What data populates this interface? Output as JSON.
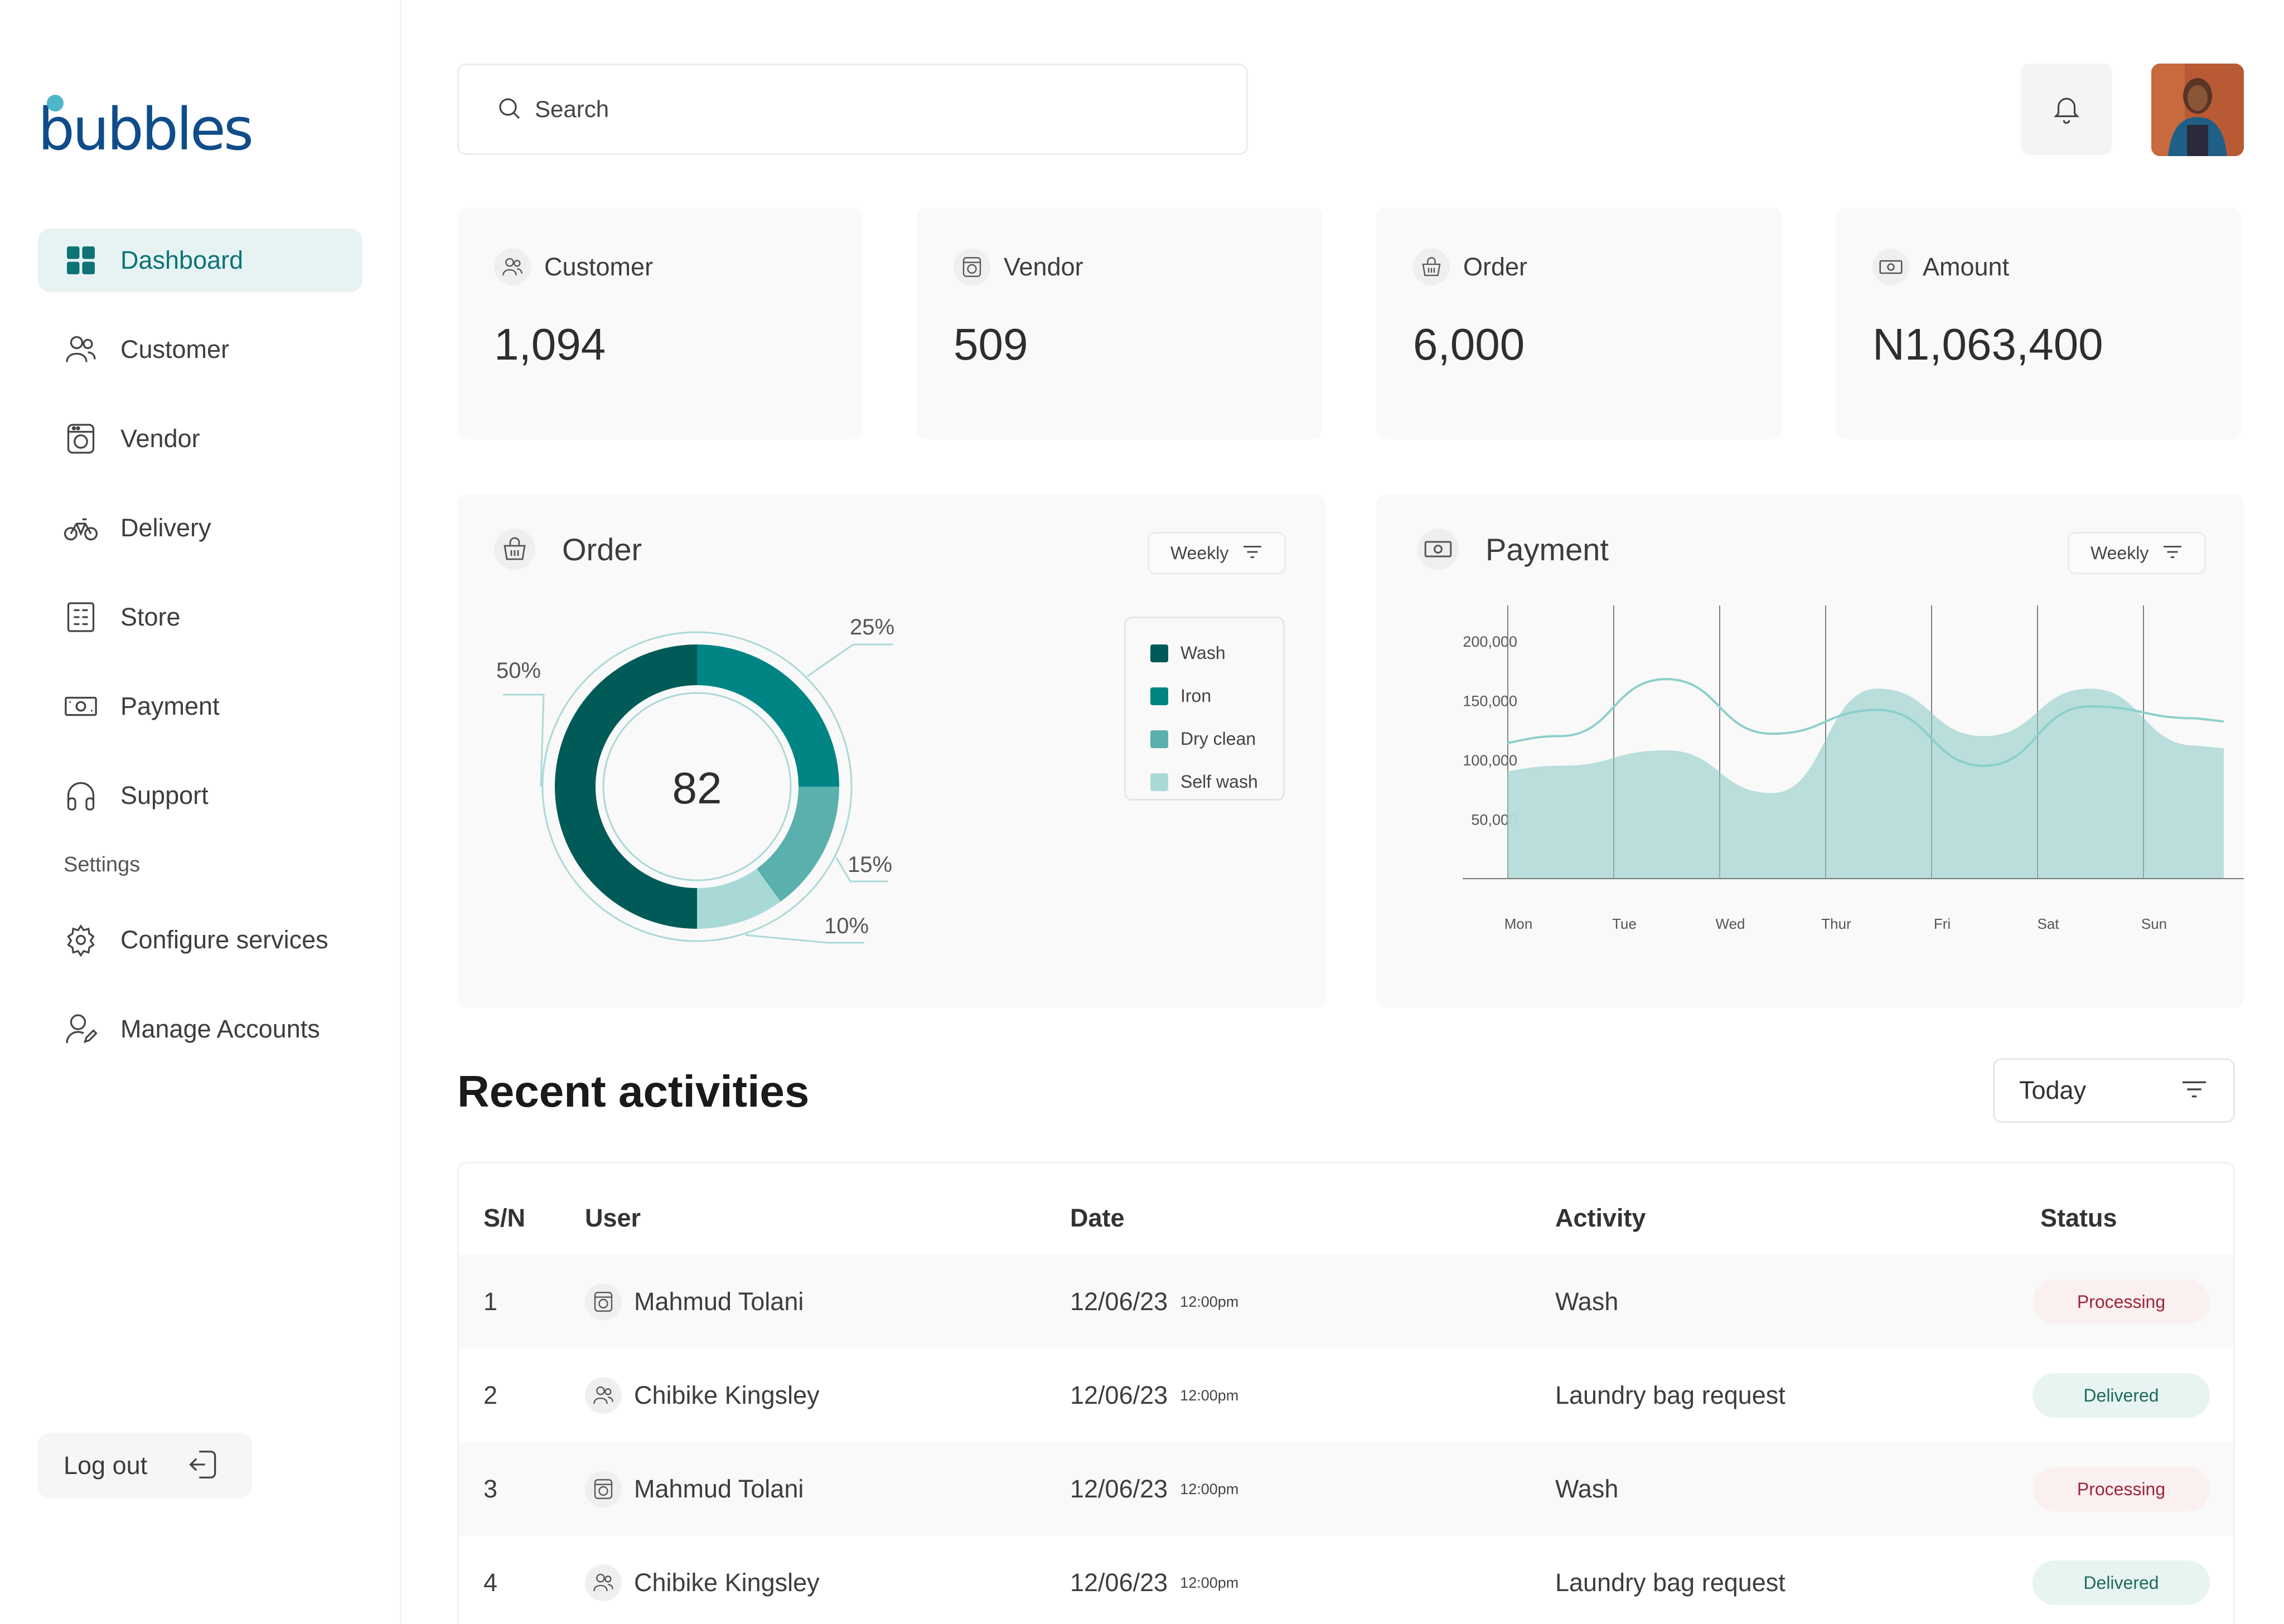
{
  "brand": {
    "name": "bubbles"
  },
  "sidebar": {
    "items": [
      {
        "label": "Dashboard",
        "icon": "grid-icon"
      },
      {
        "label": "Customer",
        "icon": "users-icon"
      },
      {
        "label": "Vendor",
        "icon": "washing-machine-icon"
      },
      {
        "label": "Delivery",
        "icon": "bike-icon"
      },
      {
        "label": "Store",
        "icon": "store-icon"
      },
      {
        "label": "Payment",
        "icon": "banknote-icon"
      },
      {
        "label": "Support",
        "icon": "headphones-icon"
      }
    ],
    "section_label": "Settings",
    "settings_items": [
      {
        "label": "Configure services",
        "icon": "gear-icon"
      },
      {
        "label": "Manage Accounts",
        "icon": "user-edit-icon"
      }
    ],
    "logout_label": "Log out"
  },
  "header": {
    "search_placeholder": "Search"
  },
  "stats": [
    {
      "label": "Customer",
      "value": "1,094"
    },
    {
      "label": "Vendor",
      "value": "509"
    },
    {
      "label": "Order",
      "value": "6,000"
    },
    {
      "label": "Amount",
      "value": "N1,063,400"
    }
  ],
  "order_panel": {
    "title": "Order",
    "filter_label": "Weekly",
    "center_value": "82"
  },
  "payment_panel": {
    "title": "Payment",
    "filter_label": "Weekly"
  },
  "colors": {
    "wash": "#005b58",
    "iron": "#008484",
    "dry_clean": "#59b0ad",
    "self_wash": "#a9d9d7",
    "accent": "#0d7377"
  },
  "chart_data": [
    {
      "type": "pie",
      "categories": [
        "Wash",
        "Iron",
        "Dry clean",
        "Self wash"
      ],
      "values": [
        50,
        25,
        15,
        10
      ],
      "data_labels": [
        "50%",
        "25%",
        "15%",
        "10%"
      ],
      "center_label": "82",
      "legend": "right"
    },
    {
      "type": "area",
      "x": [
        "Mon",
        "Tue",
        "Wed",
        "Thur",
        "Fri",
        "Sat",
        "Sun"
      ],
      "series": [
        {
          "values": [
            95000,
            108000,
            72000,
            160000,
            120000,
            160000,
            112000
          ]
        },
        {
          "values": [
            120000,
            168000,
            122000,
            142000,
            95000,
            145000,
            135000
          ]
        }
      ],
      "yticks": [
        "200,000",
        "150,000",
        "100,000",
        "50,000"
      ],
      "ylim": [
        0,
        230000
      ],
      "grid": "vertical"
    }
  ],
  "recent": {
    "title": "Recent activities",
    "filter_label": "Today",
    "columns": [
      "S/N",
      "User",
      "Date",
      "Activity",
      "Status"
    ],
    "rows": [
      {
        "sn": "1",
        "user": "Mahmud Tolani",
        "user_icon": "washing-machine-icon",
        "date": "12/06/23",
        "time": "12:00pm",
        "activity": "Wash",
        "status": "Processing"
      },
      {
        "sn": "2",
        "user": "Chibike Kingsley",
        "user_icon": "users-icon",
        "date": "12/06/23",
        "time": "12:00pm",
        "activity": "Laundry bag request",
        "status": "Delivered"
      },
      {
        "sn": "3",
        "user": "Mahmud Tolani",
        "user_icon": "washing-machine-icon",
        "date": "12/06/23",
        "time": "12:00pm",
        "activity": "Wash",
        "status": "Processing"
      },
      {
        "sn": "4",
        "user": "Chibike Kingsley",
        "user_icon": "users-icon",
        "date": "12/06/23",
        "time": "12:00pm",
        "activity": "Laundry bag request",
        "status": "Delivered"
      }
    ]
  }
}
